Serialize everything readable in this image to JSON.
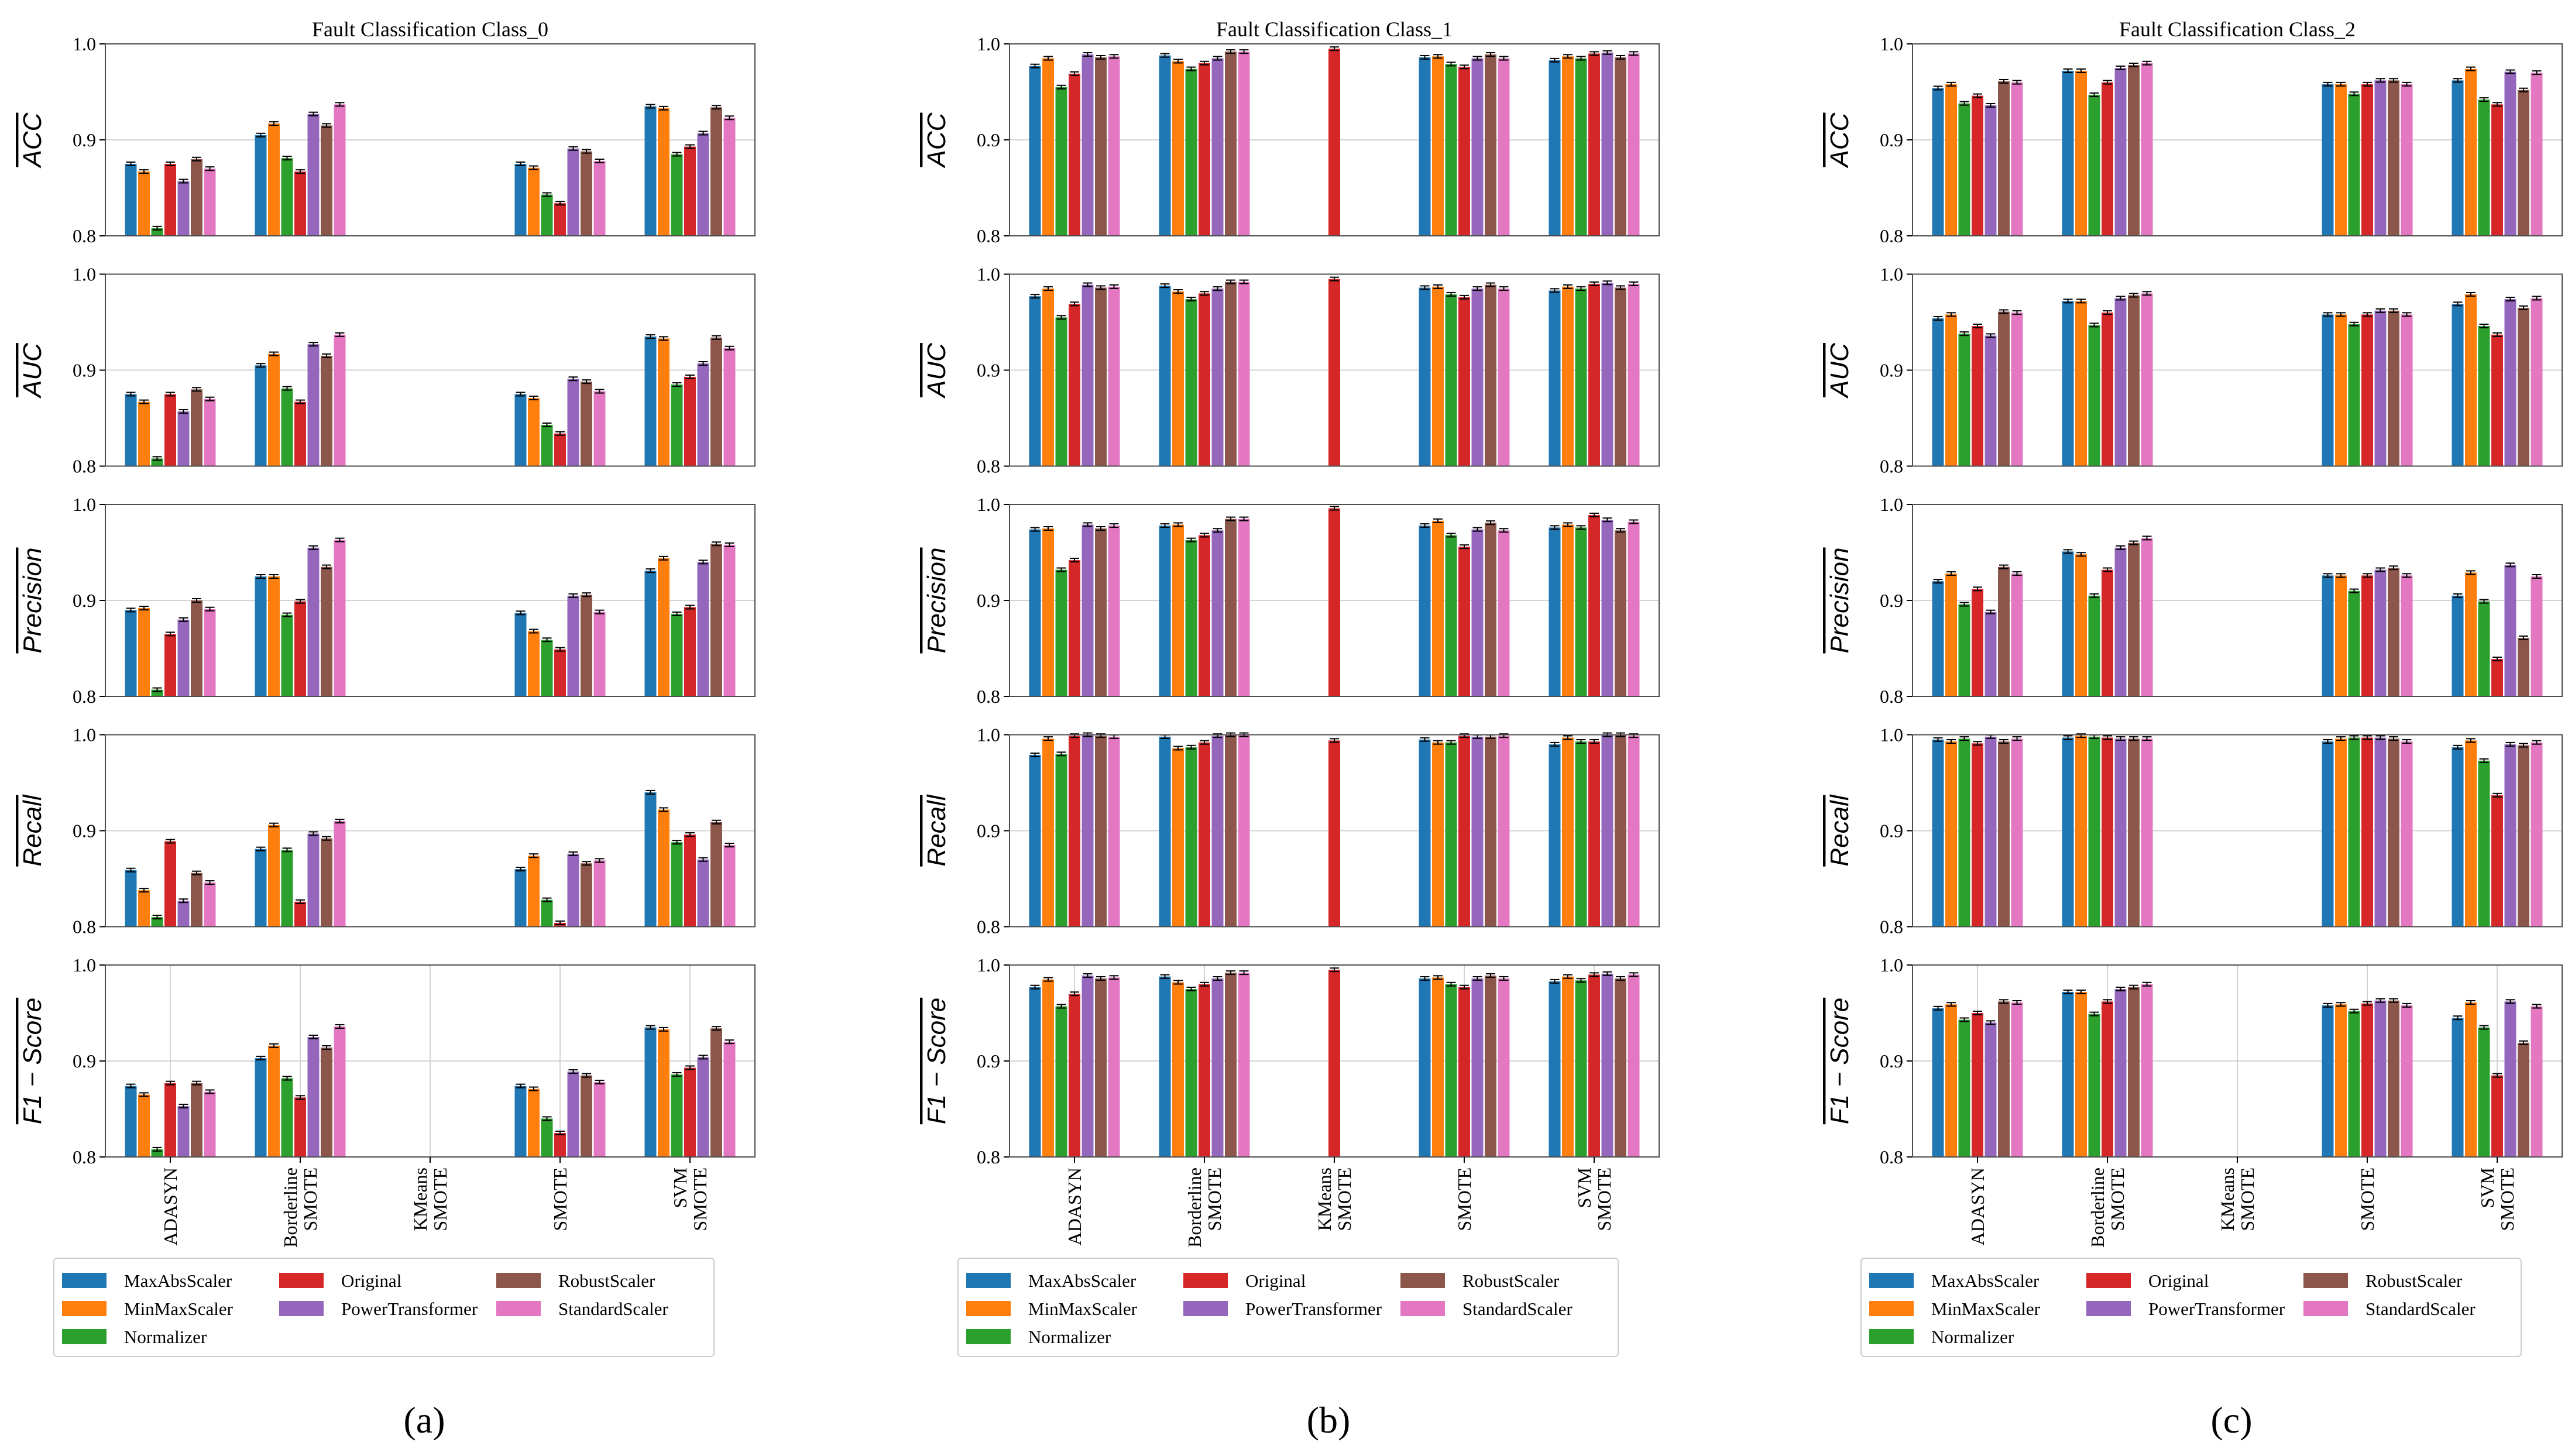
{
  "figure": {
    "captions": [
      "(a)",
      "(b)",
      "(c)"
    ],
    "metrics_display": [
      "ACC",
      "AUC",
      "Precision",
      "Recall",
      "F1 − Score"
    ]
  },
  "colors": {
    "MaxAbsScaler": "#1f77b4",
    "MinMaxScaler": "#ff7f0e",
    "Normalizer": "#2ca02c",
    "Original": "#d62728",
    "PowerTransformer": "#9467bd",
    "RobustScaler": "#8c564b",
    "StandardScaler": "#e377c2"
  },
  "chart_data": [
    {
      "type": "bar",
      "title": "Fault Classification Class_0",
      "categories": [
        "ADASYN",
        "Borderline\nSMOTE",
        "KMeans\nSMOTE",
        "SMOTE",
        "SVM\nSMOTE"
      ],
      "series_names": [
        "MaxAbsScaler",
        "MinMaxScaler",
        "Normalizer",
        "Original",
        "PowerTransformer",
        "RobustScaler",
        "StandardScaler"
      ],
      "ylim": [
        0.8,
        1.0
      ],
      "yticks": [
        "0.8",
        "0.9",
        "1.0"
      ],
      "legend": "below",
      "panels": [
        {
          "metric": "ACC",
          "values": [
            [
              0.875,
              0.867,
              0.808,
              0.875,
              0.857,
              0.88,
              0.87
            ],
            [
              0.905,
              0.917,
              0.881,
              0.867,
              0.927,
              0.915,
              0.937
            ],
            [
              null,
              null,
              null,
              null,
              null,
              null,
              null
            ],
            [
              0.875,
              0.871,
              0.843,
              0.834,
              0.891,
              0.888,
              0.878
            ],
            [
              0.935,
              0.933,
              0.885,
              0.893,
              0.907,
              0.934,
              0.923
            ]
          ]
        },
        {
          "metric": "AUC",
          "values": [
            [
              0.875,
              0.867,
              0.808,
              0.875,
              0.857,
              0.88,
              0.87
            ],
            [
              0.905,
              0.917,
              0.881,
              0.867,
              0.927,
              0.915,
              0.937
            ],
            [
              null,
              null,
              null,
              null,
              null,
              null,
              null
            ],
            [
              0.875,
              0.871,
              0.843,
              0.834,
              0.891,
              0.888,
              0.878
            ],
            [
              0.935,
              0.933,
              0.885,
              0.893,
              0.907,
              0.934,
              0.923
            ]
          ]
        },
        {
          "metric": "Precision",
          "values": [
            [
              0.89,
              0.892,
              0.807,
              0.865,
              0.88,
              0.9,
              0.891
            ],
            [
              0.925,
              0.925,
              0.885,
              0.899,
              0.955,
              0.935,
              0.963
            ],
            [
              null,
              null,
              null,
              null,
              null,
              null,
              null
            ],
            [
              0.887,
              0.868,
              0.859,
              0.849,
              0.905,
              0.906,
              0.888
            ],
            [
              0.931,
              0.944,
              0.886,
              0.893,
              0.94,
              0.959,
              0.958
            ]
          ]
        },
        {
          "metric": "Recall",
          "values": [
            [
              0.859,
              0.838,
              0.81,
              0.889,
              0.827,
              0.856,
              0.846
            ],
            [
              0.881,
              0.906,
              0.88,
              0.826,
              0.897,
              0.892,
              0.91
            ],
            [
              null,
              null,
              null,
              null,
              null,
              null,
              null
            ],
            [
              0.86,
              0.874,
              0.828,
              0.804,
              0.876,
              0.866,
              0.869
            ],
            [
              0.94,
              0.922,
              0.888,
              0.896,
              0.87,
              0.909,
              0.885
            ]
          ]
        },
        {
          "metric": "F1 − Score",
          "values": [
            [
              0.874,
              0.865,
              0.808,
              0.877,
              0.853,
              0.877,
              0.868
            ],
            [
              0.903,
              0.916,
              0.882,
              0.862,
              0.925,
              0.914,
              0.936
            ],
            [
              null,
              null,
              null,
              null,
              null,
              null,
              null
            ],
            [
              0.874,
              0.871,
              0.84,
              0.825,
              0.889,
              0.885,
              0.878
            ],
            [
              0.935,
              0.933,
              0.886,
              0.893,
              0.904,
              0.934,
              0.92
            ]
          ]
        }
      ]
    },
    {
      "type": "bar",
      "title": "Fault Classification Class_1",
      "categories": [
        "ADASYN",
        "Borderline\nSMOTE",
        "KMeans\nSMOTE",
        "SMOTE",
        "SVM\nSMOTE"
      ],
      "series_names": [
        "MaxAbsScaler",
        "MinMaxScaler",
        "Normalizer",
        "Original",
        "PowerTransformer",
        "RobustScaler",
        "StandardScaler"
      ],
      "ylim": [
        0.8,
        1.0
      ],
      "yticks": [
        "0.8",
        "0.9",
        "1.0"
      ],
      "legend": "below",
      "panels": [
        {
          "metric": "ACC",
          "values": [
            [
              0.977,
              0.985,
              0.955,
              0.969,
              0.989,
              0.986,
              0.987
            ],
            [
              0.988,
              0.982,
              0.974,
              0.98,
              0.985,
              0.992,
              0.992
            ],
            [
              null,
              null,
              null,
              0.995,
              null,
              null,
              null
            ],
            [
              0.986,
              0.987,
              0.979,
              0.976,
              0.985,
              0.989,
              0.985
            ],
            [
              0.983,
              0.987,
              0.985,
              0.99,
              0.991,
              0.986,
              0.99
            ]
          ]
        },
        {
          "metric": "AUC",
          "values": [
            [
              0.977,
              0.985,
              0.955,
              0.969,
              0.989,
              0.986,
              0.987
            ],
            [
              0.988,
              0.982,
              0.974,
              0.98,
              0.985,
              0.992,
              0.992
            ],
            [
              null,
              null,
              null,
              0.995,
              null,
              null,
              null
            ],
            [
              0.986,
              0.987,
              0.979,
              0.976,
              0.985,
              0.989,
              0.985
            ],
            [
              0.983,
              0.987,
              0.985,
              0.99,
              0.991,
              0.986,
              0.99
            ]
          ]
        },
        {
          "metric": "Precision",
          "values": [
            [
              0.974,
              0.975,
              0.932,
              0.942,
              0.979,
              0.975,
              0.978
            ],
            [
              0.978,
              0.979,
              0.963,
              0.968,
              0.973,
              0.985,
              0.985
            ],
            [
              null,
              null,
              null,
              0.996,
              null,
              null,
              null
            ],
            [
              0.978,
              0.983,
              0.968,
              0.956,
              0.974,
              0.981,
              0.973
            ],
            [
              0.976,
              0.979,
              0.976,
              0.989,
              0.984,
              0.973,
              0.982
            ]
          ]
        },
        {
          "metric": "Recall",
          "values": [
            [
              0.979,
              0.996,
              0.98,
              0.999,
              1.0,
              0.999,
              0.998
            ],
            [
              0.998,
              0.986,
              0.987,
              0.992,
              0.999,
              1.0,
              1.0
            ],
            [
              null,
              null,
              null,
              0.994,
              null,
              null,
              null
            ],
            [
              0.995,
              0.992,
              0.992,
              0.999,
              0.998,
              0.998,
              0.999
            ],
            [
              0.99,
              0.997,
              0.993,
              0.993,
              1.0,
              1.0,
              0.999
            ]
          ]
        },
        {
          "metric": "F1 − Score",
          "values": [
            [
              0.977,
              0.985,
              0.957,
              0.97,
              0.989,
              0.986,
              0.987
            ],
            [
              0.988,
              0.982,
              0.975,
              0.98,
              0.986,
              0.992,
              0.992
            ],
            [
              null,
              null,
              null,
              0.995,
              null,
              null,
              null
            ],
            [
              0.986,
              0.987,
              0.98,
              0.977,
              0.986,
              0.989,
              0.986
            ],
            [
              0.983,
              0.988,
              0.984,
              0.99,
              0.991,
              0.986,
              0.99
            ]
          ]
        }
      ]
    },
    {
      "type": "bar",
      "title": "Fault Classification Class_2",
      "categories": [
        "ADASYN",
        "Borderline\nSMOTE",
        "KMeans\nSMOTE",
        "SMOTE",
        "SVM\nSMOTE"
      ],
      "series_names": [
        "MaxAbsScaler",
        "MinMaxScaler",
        "Normalizer",
        "Original",
        "PowerTransformer",
        "RobustScaler",
        "StandardScaler"
      ],
      "ylim": [
        0.8,
        1.0
      ],
      "yticks": [
        "0.8",
        "0.9",
        "1.0"
      ],
      "legend": "below",
      "panels": [
        {
          "metric": "ACC",
          "values": [
            [
              0.954,
              0.958,
              0.938,
              0.946,
              0.936,
              0.961,
              0.96
            ],
            [
              0.972,
              0.972,
              0.947,
              0.96,
              0.975,
              0.978,
              0.98
            ],
            [
              null,
              null,
              null,
              null,
              null,
              null,
              null
            ],
            [
              0.958,
              0.958,
              0.948,
              0.958,
              0.962,
              0.962,
              0.958
            ],
            [
              0.962,
              0.974,
              0.942,
              0.937,
              0.971,
              0.952,
              0.97
            ]
          ]
        },
        {
          "metric": "AUC",
          "values": [
            [
              0.954,
              0.958,
              0.938,
              0.946,
              0.936,
              0.961,
              0.96
            ],
            [
              0.972,
              0.972,
              0.947,
              0.96,
              0.975,
              0.978,
              0.98
            ],
            [
              null,
              null,
              null,
              null,
              null,
              null,
              null
            ],
            [
              0.958,
              0.958,
              0.948,
              0.958,
              0.962,
              0.962,
              0.958
            ],
            [
              0.969,
              0.979,
              0.946,
              0.937,
              0.974,
              0.965,
              0.975
            ]
          ]
        },
        {
          "metric": "Precision",
          "values": [
            [
              0.92,
              0.928,
              0.896,
              0.912,
              0.888,
              0.935,
              0.928
            ],
            [
              0.951,
              0.948,
              0.905,
              0.932,
              0.955,
              0.96,
              0.965
            ],
            [
              null,
              null,
              null,
              null,
              null,
              null,
              null
            ],
            [
              0.926,
              0.926,
              0.91,
              0.926,
              0.932,
              0.934,
              0.926
            ],
            [
              0.905,
              0.929,
              0.899,
              0.839,
              0.937,
              0.861,
              0.925
            ]
          ]
        },
        {
          "metric": "Recall",
          "values": [
            [
              0.995,
              0.993,
              0.996,
              0.991,
              0.998,
              0.993,
              0.996
            ],
            [
              0.997,
              0.999,
              0.998,
              0.997,
              0.996,
              0.996,
              0.996
            ],
            [
              null,
              null,
              null,
              null,
              null,
              null,
              null
            ],
            [
              0.993,
              0.996,
              0.997,
              0.997,
              0.997,
              0.996,
              0.993
            ],
            [
              0.987,
              0.994,
              0.973,
              0.937,
              0.99,
              0.989,
              0.992
            ]
          ]
        },
        {
          "metric": "F1 − Score",
          "values": [
            [
              0.955,
              0.959,
              0.943,
              0.95,
              0.94,
              0.962,
              0.961
            ],
            [
              0.972,
              0.972,
              0.949,
              0.962,
              0.975,
              0.977,
              0.98
            ],
            [
              null,
              null,
              null,
              null,
              null,
              null,
              null
            ],
            [
              0.958,
              0.959,
              0.952,
              0.96,
              0.963,
              0.963,
              0.958
            ],
            [
              0.945,
              0.961,
              0.935,
              0.885,
              0.962,
              0.919,
              0.957
            ]
          ]
        }
      ]
    }
  ]
}
